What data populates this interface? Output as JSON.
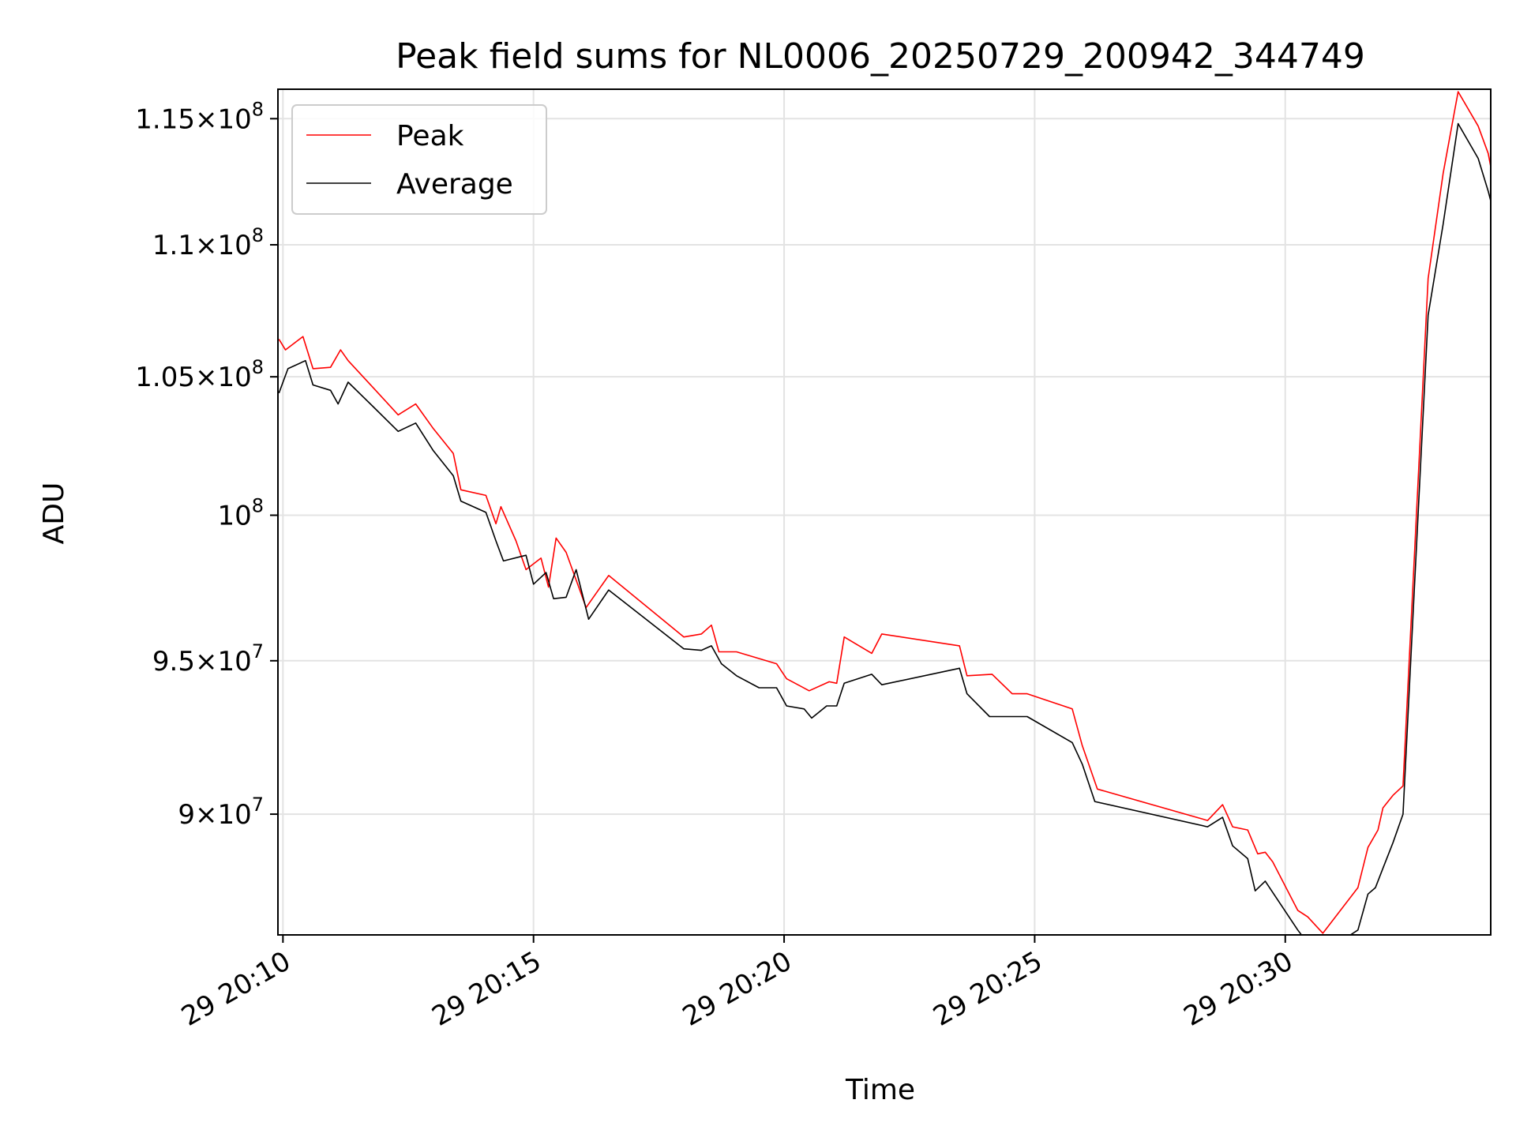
{
  "chart_data": {
    "type": "line",
    "title": "Peak field sums for NL0006_20250729_200942_344749",
    "xlabel": "Time",
    "ylabel": "ADU",
    "y_scale": "log",
    "x_unit": "minutes past 20:00 on day 29",
    "xlim": [
      9.9,
      34.1
    ],
    "ylim": [
      86250000,
      116200000
    ],
    "grid": true,
    "legend_position": "top-left",
    "x_ticks": [
      {
        "value": 10,
        "label": "29 20:10"
      },
      {
        "value": 15,
        "label": "29 20:15"
      },
      {
        "value": 20,
        "label": "29 20:20"
      },
      {
        "value": 25,
        "label": "29 20:25"
      },
      {
        "value": 30,
        "label": "29 20:30"
      }
    ],
    "y_ticks": [
      {
        "value": 90000000,
        "mantissa": "9",
        "exponent": "7"
      },
      {
        "value": 95000000,
        "mantissa": "9.5",
        "exponent": "7"
      },
      {
        "value": 100000000,
        "mantissa": "",
        "exponent": "8"
      },
      {
        "value": 105000000,
        "mantissa": "1.05",
        "exponent": "8"
      },
      {
        "value": 110000000,
        "mantissa": "1.1",
        "exponent": "8"
      },
      {
        "value": 115000000,
        "mantissa": "1.15",
        "exponent": "8"
      }
    ],
    "series": [
      {
        "name": "Peak",
        "color": "#ff0000",
        "points": [
          [
            9.92,
            106400000
          ],
          [
            10.05,
            106000000
          ],
          [
            10.4,
            106500000
          ],
          [
            10.6,
            105300000
          ],
          [
            10.95,
            105350000
          ],
          [
            11.15,
            106000000
          ],
          [
            11.3,
            105600000
          ],
          [
            11.8,
            104600000
          ],
          [
            12.3,
            103600000
          ],
          [
            12.65,
            104000000
          ],
          [
            13.0,
            103100000
          ],
          [
            13.4,
            102200000
          ],
          [
            13.55,
            100900000
          ],
          [
            14.05,
            100700000
          ],
          [
            14.25,
            99700000
          ],
          [
            14.35,
            100300000
          ],
          [
            14.65,
            99100000
          ],
          [
            14.85,
            98100000
          ],
          [
            15.15,
            98500000
          ],
          [
            15.3,
            97500000
          ],
          [
            15.45,
            99200000
          ],
          [
            15.65,
            98700000
          ],
          [
            16.05,
            96800000
          ],
          [
            16.5,
            97900000
          ],
          [
            18.0,
            95800000
          ],
          [
            18.35,
            95900000
          ],
          [
            18.55,
            96200000
          ],
          [
            18.7,
            95300000
          ],
          [
            19.05,
            95300000
          ],
          [
            19.85,
            94900000
          ],
          [
            20.05,
            94400000
          ],
          [
            20.5,
            94000000
          ],
          [
            20.9,
            94300000
          ],
          [
            21.05,
            94250000
          ],
          [
            21.2,
            95800000
          ],
          [
            21.75,
            95250000
          ],
          [
            21.95,
            95900000
          ],
          [
            23.5,
            95500000
          ],
          [
            23.65,
            94500000
          ],
          [
            24.15,
            94550000
          ],
          [
            24.55,
            93900000
          ],
          [
            24.85,
            93900000
          ],
          [
            25.75,
            93400000
          ],
          [
            25.95,
            92200000
          ],
          [
            26.25,
            90800000
          ],
          [
            28.45,
            89800000
          ],
          [
            28.75,
            90300000
          ],
          [
            28.95,
            89600000
          ],
          [
            29.25,
            89500000
          ],
          [
            29.45,
            88750000
          ],
          [
            29.6,
            88800000
          ],
          [
            29.75,
            88500000
          ],
          [
            30.25,
            87000000
          ],
          [
            30.45,
            86800000
          ],
          [
            30.75,
            86300000
          ],
          [
            31.45,
            87700000
          ],
          [
            31.65,
            88950000
          ],
          [
            31.85,
            89500000
          ],
          [
            31.95,
            90200000
          ],
          [
            32.15,
            90600000
          ],
          [
            32.35,
            90900000
          ],
          [
            32.85,
            108700000
          ],
          [
            33.15,
            112800000
          ],
          [
            33.45,
            116100000
          ],
          [
            33.85,
            114700000
          ],
          [
            34.05,
            113600000
          ],
          [
            34.3,
            111000000
          ],
          [
            34.5,
            110400000
          ]
        ]
      },
      {
        "name": "Average",
        "color": "#000000",
        "points": [
          [
            9.92,
            104400000
          ],
          [
            10.1,
            105300000
          ],
          [
            10.45,
            105600000
          ],
          [
            10.6,
            104700000
          ],
          [
            10.95,
            104500000
          ],
          [
            11.1,
            104000000
          ],
          [
            11.3,
            104800000
          ],
          [
            11.8,
            103900000
          ],
          [
            12.3,
            103000000
          ],
          [
            12.65,
            103300000
          ],
          [
            13.0,
            102300000
          ],
          [
            13.4,
            101400000
          ],
          [
            13.55,
            100500000
          ],
          [
            14.05,
            100100000
          ],
          [
            14.25,
            99100000
          ],
          [
            14.4,
            98400000
          ],
          [
            14.85,
            98600000
          ],
          [
            15.0,
            97600000
          ],
          [
            15.25,
            98000000
          ],
          [
            15.4,
            97100000
          ],
          [
            15.65,
            97150000
          ],
          [
            15.85,
            98100000
          ],
          [
            16.1,
            96400000
          ],
          [
            16.5,
            97400000
          ],
          [
            18.0,
            95400000
          ],
          [
            18.35,
            95350000
          ],
          [
            18.55,
            95500000
          ],
          [
            18.75,
            94900000
          ],
          [
            19.05,
            94500000
          ],
          [
            19.5,
            94100000
          ],
          [
            19.85,
            94100000
          ],
          [
            20.05,
            93500000
          ],
          [
            20.4,
            93400000
          ],
          [
            20.55,
            93100000
          ],
          [
            20.85,
            93500000
          ],
          [
            21.05,
            93500000
          ],
          [
            21.2,
            94250000
          ],
          [
            21.75,
            94550000
          ],
          [
            21.95,
            94200000
          ],
          [
            23.5,
            94750000
          ],
          [
            23.65,
            93900000
          ],
          [
            24.1,
            93150000
          ],
          [
            24.85,
            93150000
          ],
          [
            25.75,
            92300000
          ],
          [
            25.95,
            91600000
          ],
          [
            26.2,
            90400000
          ],
          [
            28.45,
            89600000
          ],
          [
            28.75,
            89900000
          ],
          [
            28.95,
            89000000
          ],
          [
            29.25,
            88600000
          ],
          [
            29.4,
            87600000
          ],
          [
            29.6,
            87900000
          ],
          [
            30.25,
            86400000
          ],
          [
            30.45,
            86000000
          ],
          [
            30.75,
            85700000
          ],
          [
            31.45,
            86400000
          ],
          [
            31.65,
            87500000
          ],
          [
            31.8,
            87700000
          ],
          [
            31.95,
            88300000
          ],
          [
            32.15,
            89100000
          ],
          [
            32.35,
            90000000
          ],
          [
            32.85,
            107300000
          ],
          [
            33.15,
            110800000
          ],
          [
            33.45,
            114800000
          ],
          [
            33.85,
            113400000
          ],
          [
            34.05,
            112100000
          ],
          [
            34.3,
            110200000
          ],
          [
            34.5,
            109900000
          ]
        ]
      }
    ]
  }
}
